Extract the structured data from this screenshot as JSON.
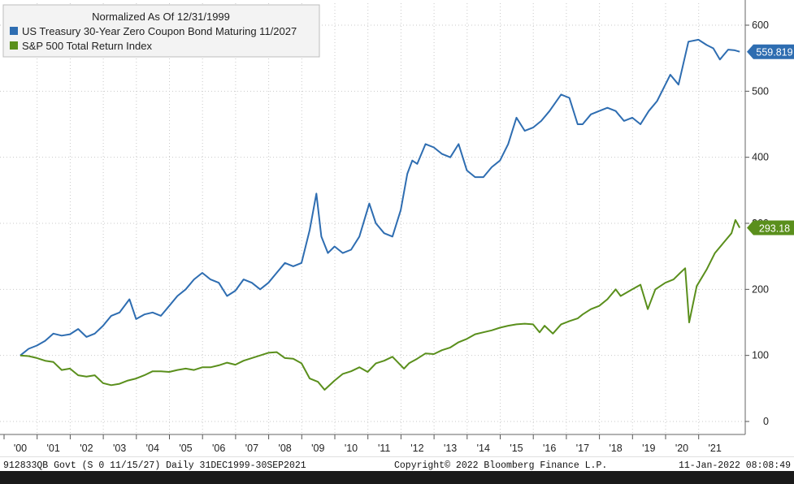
{
  "chart_data": {
    "type": "line",
    "legend": {
      "title": "Normalized As Of 12/31/1999",
      "placement": "top-left"
    },
    "x": [
      "'00",
      "'01",
      "'02",
      "'03",
      "'04",
      "'05",
      "'06",
      "'07",
      "'08",
      "'09",
      "'10",
      "'11",
      "'12",
      "'13",
      "'14",
      "'15",
      "'16",
      "'17",
      "'18",
      "'19",
      "'20",
      "'21"
    ],
    "xlim": [
      2000.0,
      2021.75
    ],
    "ylim": [
      0,
      640
    ],
    "yticks": [
      0,
      100,
      200,
      300,
      400,
      500,
      600
    ],
    "grid": true,
    "series": [
      {
        "name": "US Treasury 30-Year Zero Coupon Bond Maturing 11/2027",
        "color": "#2e6db1",
        "last_value_label": "559.819",
        "points": [
          [
            2000.0,
            100
          ],
          [
            2000.25,
            110
          ],
          [
            2000.5,
            115
          ],
          [
            2000.75,
            122
          ],
          [
            2001.0,
            133
          ],
          [
            2001.25,
            130
          ],
          [
            2001.5,
            132
          ],
          [
            2001.75,
            140
          ],
          [
            2002.0,
            128
          ],
          [
            2002.25,
            133
          ],
          [
            2002.5,
            145
          ],
          [
            2002.75,
            160
          ],
          [
            2003.0,
            165
          ],
          [
            2003.3,
            185
          ],
          [
            2003.5,
            155
          ],
          [
            2003.75,
            162
          ],
          [
            2004.0,
            165
          ],
          [
            2004.25,
            160
          ],
          [
            2004.5,
            175
          ],
          [
            2004.75,
            190
          ],
          [
            2005.0,
            200
          ],
          [
            2005.25,
            215
          ],
          [
            2005.5,
            225
          ],
          [
            2005.75,
            215
          ],
          [
            2006.0,
            210
          ],
          [
            2006.25,
            190
          ],
          [
            2006.5,
            198
          ],
          [
            2006.75,
            215
          ],
          [
            2007.0,
            210
          ],
          [
            2007.25,
            200
          ],
          [
            2007.5,
            210
          ],
          [
            2007.75,
            225
          ],
          [
            2008.0,
            240
          ],
          [
            2008.25,
            235
          ],
          [
            2008.5,
            240
          ],
          [
            2008.75,
            290
          ],
          [
            2008.95,
            345
          ],
          [
            2009.1,
            280
          ],
          [
            2009.3,
            255
          ],
          [
            2009.5,
            265
          ],
          [
            2009.75,
            255
          ],
          [
            2010.0,
            260
          ],
          [
            2010.25,
            280
          ],
          [
            2010.55,
            330
          ],
          [
            2010.75,
            300
          ],
          [
            2011.0,
            285
          ],
          [
            2011.25,
            280
          ],
          [
            2011.5,
            320
          ],
          [
            2011.7,
            375
          ],
          [
            2011.85,
            395
          ],
          [
            2012.0,
            390
          ],
          [
            2012.25,
            420
          ],
          [
            2012.5,
            415
          ],
          [
            2012.75,
            405
          ],
          [
            2013.0,
            400
          ],
          [
            2013.25,
            420
          ],
          [
            2013.5,
            380
          ],
          [
            2013.75,
            370
          ],
          [
            2014.0,
            370
          ],
          [
            2014.25,
            385
          ],
          [
            2014.5,
            395
          ],
          [
            2014.75,
            420
          ],
          [
            2015.0,
            460
          ],
          [
            2015.25,
            440
          ],
          [
            2015.5,
            445
          ],
          [
            2015.75,
            455
          ],
          [
            2016.0,
            470
          ],
          [
            2016.35,
            495
          ],
          [
            2016.6,
            490
          ],
          [
            2016.85,
            450
          ],
          [
            2017.0,
            450
          ],
          [
            2017.25,
            465
          ],
          [
            2017.5,
            470
          ],
          [
            2017.75,
            475
          ],
          [
            2018.0,
            470
          ],
          [
            2018.25,
            455
          ],
          [
            2018.5,
            460
          ],
          [
            2018.75,
            450
          ],
          [
            2019.0,
            470
          ],
          [
            2019.25,
            485
          ],
          [
            2019.5,
            510
          ],
          [
            2019.65,
            525
          ],
          [
            2019.9,
            510
          ],
          [
            2020.2,
            575
          ],
          [
            2020.5,
            578
          ],
          [
            2020.75,
            570
          ],
          [
            2020.95,
            565
          ],
          [
            2021.15,
            548
          ],
          [
            2021.4,
            563
          ],
          [
            2021.6,
            562
          ],
          [
            2021.75,
            559.8
          ]
        ]
      },
      {
        "name": "S&P 500 Total Return Index",
        "color": "#5a8f1c",
        "last_value_label": "293.18",
        "points": [
          [
            2000.0,
            100
          ],
          [
            2000.25,
            99
          ],
          [
            2000.5,
            96
          ],
          [
            2000.75,
            92
          ],
          [
            2001.0,
            90
          ],
          [
            2001.25,
            78
          ],
          [
            2001.5,
            80
          ],
          [
            2001.75,
            70
          ],
          [
            2002.0,
            68
          ],
          [
            2002.25,
            70
          ],
          [
            2002.5,
            58
          ],
          [
            2002.75,
            55
          ],
          [
            2003.0,
            57
          ],
          [
            2003.25,
            62
          ],
          [
            2003.5,
            65
          ],
          [
            2003.75,
            70
          ],
          [
            2004.0,
            76
          ],
          [
            2004.25,
            76
          ],
          [
            2004.5,
            75
          ],
          [
            2004.75,
            78
          ],
          [
            2005.0,
            80
          ],
          [
            2005.25,
            78
          ],
          [
            2005.5,
            82
          ],
          [
            2005.75,
            82
          ],
          [
            2006.0,
            85
          ],
          [
            2006.25,
            89
          ],
          [
            2006.5,
            86
          ],
          [
            2006.75,
            92
          ],
          [
            2007.0,
            96
          ],
          [
            2007.25,
            100
          ],
          [
            2007.5,
            104
          ],
          [
            2007.75,
            105
          ],
          [
            2008.0,
            96
          ],
          [
            2008.25,
            95
          ],
          [
            2008.5,
            88
          ],
          [
            2008.75,
            65
          ],
          [
            2009.0,
            60
          ],
          [
            2009.2,
            48
          ],
          [
            2009.5,
            62
          ],
          [
            2009.75,
            72
          ],
          [
            2010.0,
            76
          ],
          [
            2010.25,
            82
          ],
          [
            2010.5,
            75
          ],
          [
            2010.75,
            88
          ],
          [
            2011.0,
            92
          ],
          [
            2011.25,
            98
          ],
          [
            2011.6,
            80
          ],
          [
            2011.75,
            88
          ],
          [
            2012.0,
            95
          ],
          [
            2012.25,
            103
          ],
          [
            2012.5,
            102
          ],
          [
            2012.75,
            108
          ],
          [
            2013.0,
            112
          ],
          [
            2013.25,
            120
          ],
          [
            2013.5,
            125
          ],
          [
            2013.75,
            132
          ],
          [
            2014.0,
            135
          ],
          [
            2014.25,
            138
          ],
          [
            2014.5,
            142
          ],
          [
            2014.75,
            145
          ],
          [
            2015.0,
            147
          ],
          [
            2015.25,
            148
          ],
          [
            2015.5,
            147
          ],
          [
            2015.7,
            135
          ],
          [
            2015.85,
            145
          ],
          [
            2016.1,
            133
          ],
          [
            2016.35,
            147
          ],
          [
            2016.6,
            152
          ],
          [
            2016.85,
            156
          ],
          [
            2017.0,
            162
          ],
          [
            2017.25,
            170
          ],
          [
            2017.5,
            175
          ],
          [
            2017.75,
            185
          ],
          [
            2018.0,
            200
          ],
          [
            2018.15,
            190
          ],
          [
            2018.5,
            200
          ],
          [
            2018.75,
            207
          ],
          [
            2018.97,
            170
          ],
          [
            2019.2,
            200
          ],
          [
            2019.5,
            210
          ],
          [
            2019.75,
            215
          ],
          [
            2019.95,
            225
          ],
          [
            2020.1,
            232
          ],
          [
            2020.22,
            150
          ],
          [
            2020.45,
            205
          ],
          [
            2020.75,
            230
          ],
          [
            2021.0,
            255
          ],
          [
            2021.25,
            270
          ],
          [
            2021.5,
            285
          ],
          [
            2021.62,
            305
          ],
          [
            2021.75,
            293.2
          ]
        ]
      }
    ]
  },
  "footer": {
    "left": "912833QB Govt (S 0 11/15/27)  Daily 31DEC1999-30SEP2021",
    "center": "Copyright© 2022 Bloomberg Finance L.P.",
    "right": "11-Jan-2022 08:08:49"
  }
}
